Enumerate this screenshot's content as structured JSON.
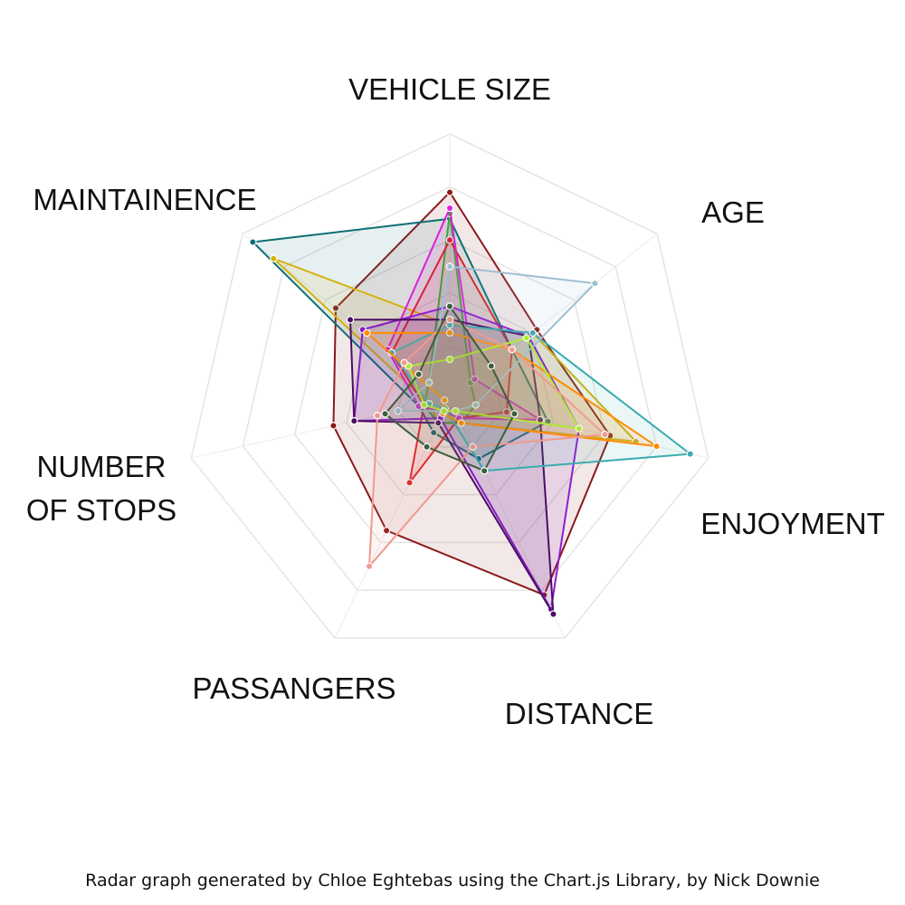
{
  "chart_data": {
    "type": "radar",
    "axes": [
      "VEHICLE SIZE",
      "AGE",
      "ENJOYMENT",
      "DISTANCE",
      "PASSANGERS",
      "NUMBER\nOF STOPS",
      "MAINTAINENCE"
    ],
    "r_range": [
      0,
      100
    ],
    "grid": true,
    "series": [
      {
        "color": "#8b1a1a",
        "values": [
          78,
          42,
          62,
          82,
          55,
          45,
          55
        ]
      },
      {
        "color": "#0d6f73",
        "values": [
          68,
          30,
          38,
          25,
          14,
          12,
          95
        ]
      },
      {
        "color": "#d4b20f",
        "values": [
          28,
          40,
          72,
          10,
          10,
          8,
          85
        ]
      },
      {
        "color": "#22bb22",
        "values": [
          70,
          10,
          10,
          10,
          10,
          10,
          10
        ]
      },
      {
        "color": "#dd2222",
        "values": [
          60,
          30,
          22,
          8,
          35,
          10,
          28
        ]
      },
      {
        "color": "#dd1fdd",
        "values": [
          72,
          12,
          35,
          8,
          5,
          12,
          30
        ]
      },
      {
        "color": "#8e1ed1",
        "values": [
          35,
          38,
          50,
          88,
          8,
          37,
          42
        ]
      },
      {
        "color": "#4a0f63",
        "values": [
          30,
          38,
          35,
          90,
          10,
          37,
          48
        ]
      },
      {
        "color": "#3aacb0",
        "values": [
          28,
          40,
          93,
          30,
          4,
          8,
          28
        ]
      },
      {
        "color": "#ff8c00",
        "values": [
          25,
          30,
          80,
          10,
          6,
          2,
          40
        ]
      },
      {
        "color": "#9fbfd2",
        "values": [
          50,
          70,
          10,
          5,
          5,
          20,
          10
        ]
      },
      {
        "color": "#adf02c",
        "values": [
          15,
          37,
          50,
          5,
          5,
          10,
          20
        ]
      },
      {
        "color": "#f09a8f",
        "values": [
          30,
          30,
          60,
          20,
          70,
          28,
          22
        ]
      },
      {
        "color": "#3d5e3d",
        "values": [
          35,
          20,
          25,
          30,
          20,
          25,
          15
        ]
      }
    ]
  },
  "caption": "Radar graph generated by Chloe Eghtebas using the Chart.js Library, by Nick Downie"
}
